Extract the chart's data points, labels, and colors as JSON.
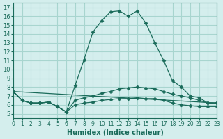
{
  "xlabel": "Humidex (Indice chaleur)",
  "bg_color": "#d4eeed",
  "line_color": "#1a6b5a",
  "grid_color": "#a8d5cf",
  "xlim": [
    0,
    23
  ],
  "ylim": [
    4.5,
    17.5
  ],
  "yticks": [
    5,
    6,
    7,
    8,
    9,
    10,
    11,
    12,
    13,
    14,
    15,
    16,
    17
  ],
  "xticks": [
    0,
    1,
    2,
    3,
    4,
    5,
    6,
    7,
    8,
    9,
    10,
    11,
    12,
    13,
    14,
    15,
    16,
    17,
    18,
    19,
    20,
    21,
    22,
    23
  ],
  "curve1_x": [
    0,
    1,
    2,
    3,
    4,
    5,
    6,
    7,
    8,
    9,
    10,
    11,
    12,
    13,
    14,
    15,
    16,
    17,
    18,
    19,
    20,
    21,
    22,
    23
  ],
  "curve1_y": [
    7.5,
    6.5,
    6.2,
    6.2,
    6.3,
    5.8,
    5.2,
    8.2,
    11.1,
    14.2,
    15.5,
    16.5,
    16.6,
    16.0,
    16.6,
    15.2,
    13.0,
    11.0,
    8.7,
    8.0,
    7.0,
    6.8,
    6.2,
    6.2
  ],
  "curve2_x": [
    0,
    1,
    2,
    3,
    4,
    5,
    6,
    7,
    8,
    9,
    10,
    11,
    12,
    13,
    14,
    15,
    16,
    17,
    18,
    19,
    20,
    21,
    22,
    23
  ],
  "curve2_y": [
    7.5,
    6.5,
    6.2,
    6.2,
    6.3,
    5.8,
    5.2,
    6.5,
    6.8,
    7.0,
    7.3,
    7.5,
    7.8,
    7.9,
    8.0,
    7.9,
    7.8,
    7.5,
    7.2,
    7.0,
    6.8,
    6.5,
    6.2,
    6.2
  ],
  "curve3_x": [
    0,
    1,
    2,
    3,
    4,
    5,
    6,
    7,
    8,
    9,
    10,
    11,
    12,
    13,
    14,
    15,
    16,
    17,
    18,
    19,
    20,
    21,
    22,
    23
  ],
  "curve3_y": [
    7.5,
    6.5,
    6.2,
    6.2,
    6.3,
    5.8,
    5.2,
    6.0,
    6.2,
    6.3,
    6.5,
    6.6,
    6.7,
    6.7,
    6.8,
    6.7,
    6.7,
    6.5,
    6.2,
    6.0,
    5.9,
    5.8,
    5.8,
    5.8
  ],
  "curve4_x": [
    0,
    23
  ],
  "curve4_y": [
    7.5,
    6.2
  ]
}
